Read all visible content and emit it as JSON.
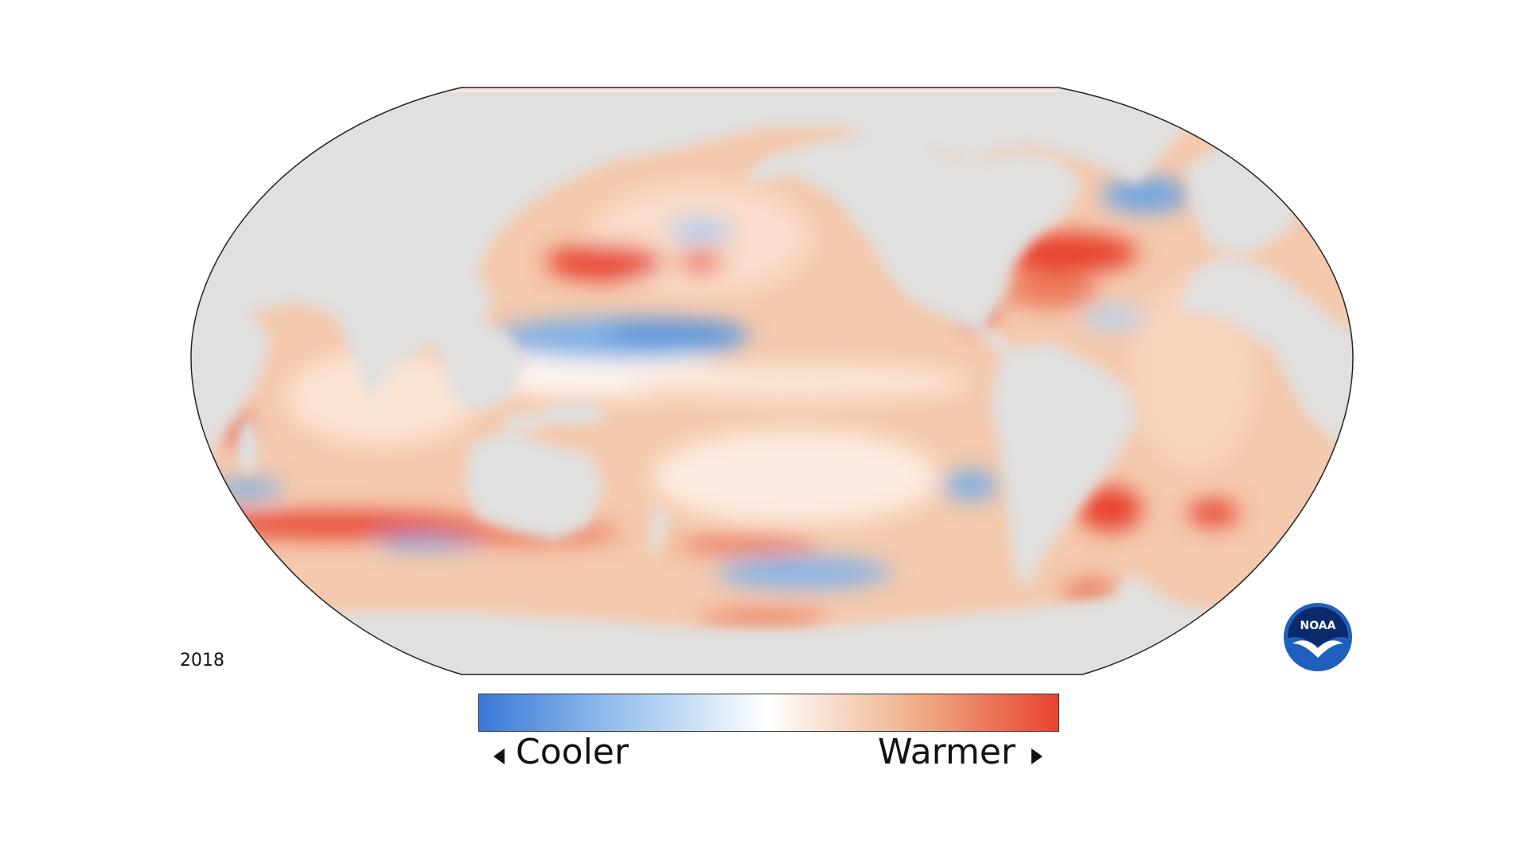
{
  "map": {
    "year": "2018",
    "land_color": "#e0e0e0",
    "ocean_base_color": "#f4c9ad"
  },
  "legend": {
    "cool_label": "Cooler",
    "warm_label": "Warmer",
    "colors": [
      "#3a78d8",
      "#9cc4ee",
      "#ffffff",
      "#efb08a",
      "#e8432f"
    ]
  },
  "logo": {
    "name": "NOAA",
    "text": "NOAA",
    "primary_color": "#1f5fbf",
    "secondary_color": "#0b2a6b"
  }
}
